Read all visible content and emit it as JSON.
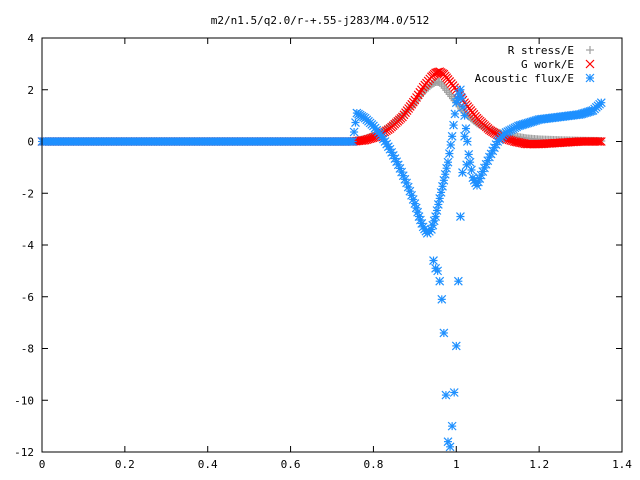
{
  "chart_data": {
    "type": "scatter",
    "title": "m2/n1.5/q2.0/r-+.55-j283/M4.0/512",
    "xlabel": "",
    "ylabel": "",
    "xlim": [
      0,
      1.4
    ],
    "ylim": [
      -12,
      4
    ],
    "x_ticks": [
      "0",
      "0.2",
      "0.4",
      "0.6",
      "0.8",
      "1",
      "1.2",
      "1.4"
    ],
    "y_ticks": [
      "4",
      "2",
      "0",
      "-2",
      "-4",
      "-6",
      "-8",
      "-10",
      "-12"
    ],
    "grid": false,
    "legend_position": "top-right",
    "series": [
      {
        "name": "R stress/E",
        "marker": "plus",
        "color": "#a0a0a0",
        "x": [
          0.75,
          0.78,
          0.81,
          0.84,
          0.87,
          0.9,
          0.92,
          0.94,
          0.95,
          0.96,
          0.98,
          1.0,
          1.02,
          1.05,
          1.08,
          1.11,
          1.14,
          1.17,
          1.2,
          1.25,
          1.3,
          1.35
        ],
        "y": [
          0.0,
          0.1,
          0.3,
          0.6,
          1.0,
          1.5,
          1.9,
          2.2,
          2.3,
          2.3,
          1.9,
          1.5,
          1.1,
          0.7,
          0.45,
          0.3,
          0.2,
          0.12,
          0.08,
          0.05,
          0.03,
          0.02
        ]
      },
      {
        "name": "G work/E",
        "marker": "cross",
        "color": "#ff0000",
        "x": [
          0.75,
          0.78,
          0.81,
          0.84,
          0.87,
          0.9,
          0.92,
          0.94,
          0.95,
          0.96,
          0.97,
          0.98,
          1.0,
          1.02,
          1.05,
          1.08,
          1.11,
          1.14,
          1.17,
          1.2,
          1.25,
          1.3,
          1.35
        ],
        "y": [
          0.0,
          0.05,
          0.2,
          0.5,
          0.95,
          1.6,
          2.1,
          2.5,
          2.65,
          2.7,
          2.6,
          2.4,
          2.0,
          1.5,
          0.9,
          0.45,
          0.15,
          0.0,
          -0.1,
          -0.1,
          -0.05,
          0.0,
          0.0
        ],
        "x_flat_from": 0,
        "x_flat_to": 0.75,
        "y_flat": 0
      },
      {
        "name": "Acoustic flux/E",
        "marker": "star",
        "color": "#1e90ff",
        "x": [
          0.0,
          0.1,
          0.2,
          0.3,
          0.4,
          0.5,
          0.6,
          0.7,
          0.75,
          0.76,
          0.78,
          0.8,
          0.82,
          0.84,
          0.86,
          0.88,
          0.9,
          0.91,
          0.92,
          0.93,
          0.94,
          0.95,
          0.96,
          0.97,
          0.98,
          0.99,
          1.0,
          1.01,
          1.02,
          1.03,
          1.04,
          1.05,
          1.06,
          1.08,
          1.1,
          1.12,
          1.15,
          1.2,
          1.25,
          1.3,
          1.33,
          1.35
        ],
        "y": [
          0.0,
          0.0,
          0.0,
          0.0,
          0.0,
          0.0,
          0.0,
          0.0,
          0.0,
          1.1,
          0.9,
          0.6,
          0.2,
          -0.3,
          -0.9,
          -1.6,
          -2.4,
          -2.9,
          -3.3,
          -3.55,
          -3.4,
          -2.9,
          -2.2,
          -1.5,
          -0.8,
          0.2,
          1.5,
          2.0,
          1.0,
          -0.5,
          -1.4,
          -1.7,
          -1.3,
          -0.6,
          0.0,
          0.35,
          0.6,
          0.85,
          0.95,
          1.05,
          1.2,
          1.5
        ],
        "scatter_x": [
          0.945,
          0.95,
          0.955,
          0.96,
          0.965,
          0.97,
          0.975,
          0.98,
          0.985,
          0.99,
          0.995,
          1.0,
          1.005,
          1.01,
          1.015,
          1.02,
          1.025
        ],
        "scatter_y": [
          -4.6,
          -4.9,
          -5.0,
          -5.4,
          -6.1,
          -7.4,
          -9.8,
          -11.6,
          -11.8,
          -11.0,
          -9.7,
          -7.9,
          -5.4,
          -2.9,
          -1.2,
          0.2,
          -0.9
        ]
      }
    ]
  }
}
